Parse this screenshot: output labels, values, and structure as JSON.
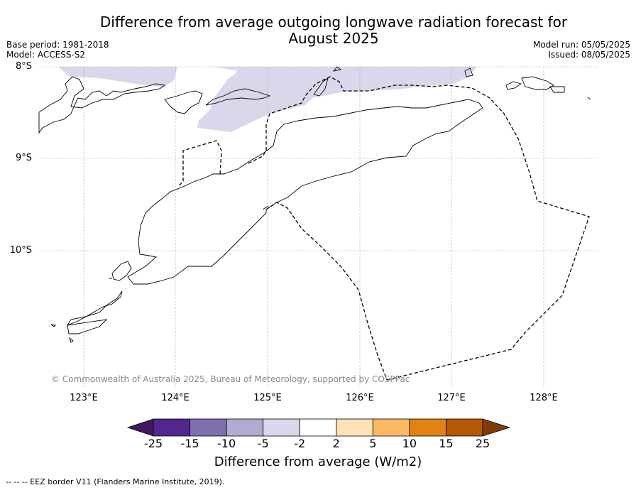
{
  "title_line1": "Difference from average outgoing longwave radiation forecast for",
  "title_line2": "August 2025",
  "meta": {
    "base_period": "Base period: 1981-2018",
    "model": "Model: ACCESS-S2",
    "model_run": "Model run: 05/05/2025",
    "issued": "Issued: 08/05/2025"
  },
  "lat_labels": [
    "8°S",
    "9°S",
    "10°S"
  ],
  "lon_labels": [
    "123°E",
    "124°E",
    "125°E",
    "126°E",
    "127°E",
    "128°E"
  ],
  "copyright": "© Commonwealth of Australia 2025, Bureau of Meteorology, supported by COSPPac",
  "colorbar": {
    "ticks": [
      "-25",
      "-15",
      "-10",
      "-5",
      "-2",
      "2",
      "5",
      "10",
      "15",
      "25"
    ],
    "colors": [
      "#3f1a5e",
      "#54278f",
      "#7e6fad",
      "#b0aad4",
      "#d9d8ea",
      "#ffffff",
      "#fee1b6",
      "#fdb863",
      "#e08214",
      "#b35806",
      "#7f3b08"
    ],
    "title": "Difference from average (W/m2)"
  },
  "shaded_colour": "#d9d8ea",
  "footnote": "--  --  -- EEZ border V11 (Flanders Marine Institute, 2019)."
}
